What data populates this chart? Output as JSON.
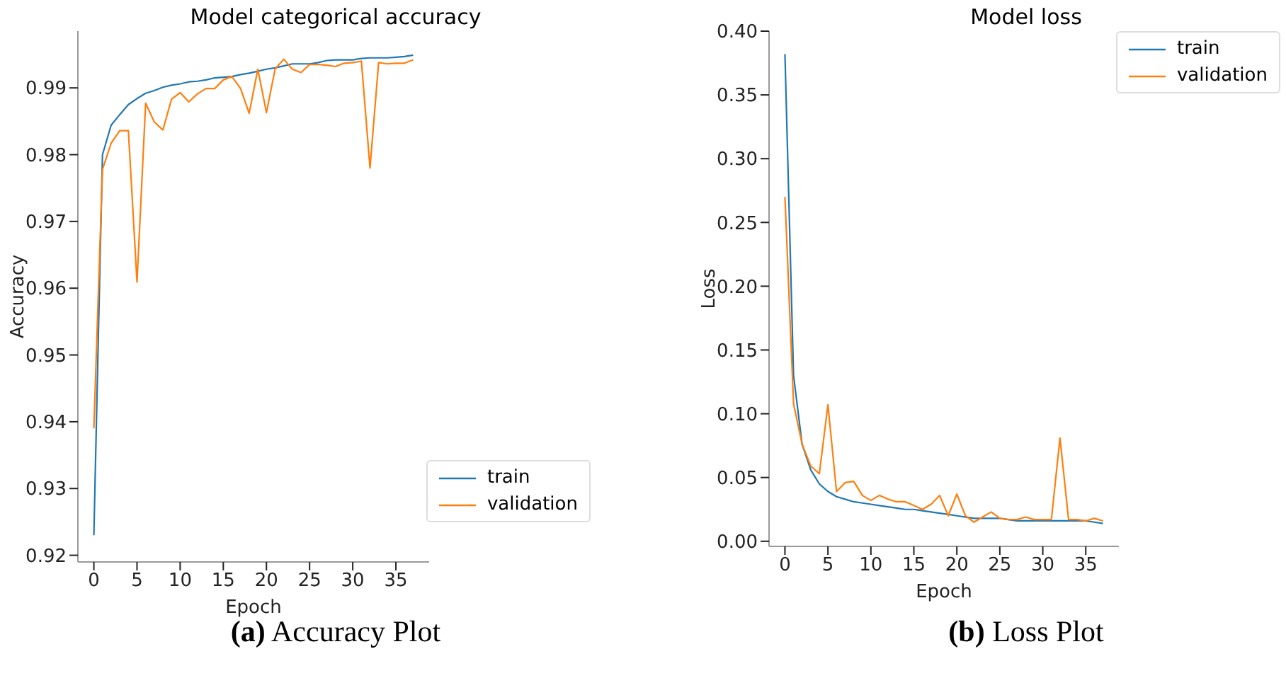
{
  "chart_data": [
    {
      "type": "line",
      "title": "Model categorical accuracy",
      "xlabel": "Epoch",
      "ylabel": "Accuracy",
      "annotations": [
        "(a) Accuracy Plot"
      ],
      "x": [
        0,
        1,
        2,
        3,
        4,
        5,
        6,
        7,
        8,
        9,
        10,
        11,
        12,
        13,
        14,
        15,
        16,
        17,
        18,
        19,
        20,
        21,
        22,
        23,
        24,
        25,
        26,
        27,
        28,
        29,
        30,
        31,
        32,
        33,
        34,
        35,
        36,
        37
      ],
      "series": [
        {
          "name": "train",
          "color": "#1f77b4",
          "values": [
            0.923,
            0.98,
            0.9844,
            0.986,
            0.9875,
            0.9884,
            0.9892,
            0.9896,
            0.9901,
            0.9904,
            0.9906,
            0.9909,
            0.991,
            0.9912,
            0.9915,
            0.9916,
            0.9917,
            0.992,
            0.9922,
            0.9925,
            0.9928,
            0.993,
            0.9933,
            0.9936,
            0.9936,
            0.9936,
            0.9938,
            0.9941,
            0.9942,
            0.9942,
            0.9942,
            0.9944,
            0.9945,
            0.9945,
            0.9945,
            0.9946,
            0.9947,
            0.9949
          ]
        },
        {
          "name": "validation",
          "color": "#ff7f0e",
          "values": [
            0.939,
            0.9778,
            0.9817,
            0.9836,
            0.9836,
            0.9609,
            0.9877,
            0.9849,
            0.9837,
            0.9883,
            0.9893,
            0.9879,
            0.9891,
            0.9899,
            0.9899,
            0.9912,
            0.9917,
            0.9899,
            0.9862,
            0.9928,
            0.9863,
            0.9928,
            0.9943,
            0.9928,
            0.9923,
            0.9935,
            0.9935,
            0.9934,
            0.9932,
            0.9937,
            0.9938,
            0.994,
            0.978,
            0.9938,
            0.9936,
            0.9937,
            0.9937,
            0.9942
          ]
        }
      ],
      "xlim": [
        -1.85,
        38.85
      ],
      "xticks": [
        0,
        5,
        10,
        15,
        20,
        25,
        30,
        35
      ],
      "ylim": [
        0.919,
        0.9985
      ],
      "yticks": [
        0.92,
        0.93,
        0.94,
        0.95,
        0.96,
        0.97,
        0.98,
        0.99
      ],
      "legend": "bottom right",
      "grid": false,
      "line_style": "solid"
    },
    {
      "type": "line",
      "title": "Model loss",
      "xlabel": "Epoch",
      "ylabel": "Loss",
      "annotations": [
        "(b) Loss Plot"
      ],
      "x": [
        0,
        1,
        2,
        3,
        4,
        5,
        6,
        7,
        8,
        9,
        10,
        11,
        12,
        13,
        14,
        15,
        16,
        17,
        18,
        19,
        20,
        21,
        22,
        23,
        24,
        25,
        26,
        27,
        28,
        29,
        30,
        31,
        32,
        33,
        34,
        35,
        36,
        37
      ],
      "series": [
        {
          "name": "train",
          "color": "#1f77b4",
          "values": [
            0.382,
            0.13,
            0.076,
            0.056,
            0.045,
            0.039,
            0.035,
            0.033,
            0.031,
            0.03,
            0.029,
            0.028,
            0.027,
            0.026,
            0.025,
            0.025,
            0.024,
            0.023,
            0.022,
            0.021,
            0.02,
            0.019,
            0.018,
            0.018,
            0.018,
            0.018,
            0.017,
            0.016,
            0.016,
            0.016,
            0.016,
            0.016,
            0.016,
            0.016,
            0.016,
            0.016,
            0.015,
            0.014
          ]
        },
        {
          "name": "validation",
          "color": "#ff7f0e",
          "values": [
            0.27,
            0.108,
            0.076,
            0.059,
            0.053,
            0.107,
            0.039,
            0.046,
            0.047,
            0.036,
            0.032,
            0.036,
            0.033,
            0.031,
            0.031,
            0.028,
            0.025,
            0.029,
            0.036,
            0.02,
            0.037,
            0.02,
            0.015,
            0.019,
            0.023,
            0.018,
            0.017,
            0.017,
            0.019,
            0.017,
            0.017,
            0.017,
            0.081,
            0.017,
            0.017,
            0.016,
            0.018,
            0.016
          ]
        }
      ],
      "xlim": [
        -1.85,
        38.85
      ],
      "xticks": [
        0,
        5,
        10,
        15,
        20,
        25,
        30,
        35
      ],
      "ylim": [
        -0.004,
        0.4
      ],
      "yticks": [
        {
          "value": 0,
          "label": "0.00"
        },
        {
          "value": 0.05,
          "label": "0.05"
        },
        {
          "value": 0.1,
          "label": "0.10"
        },
        {
          "value": 0.15,
          "label": "0.15"
        },
        {
          "value": 0.2,
          "label": "0.20"
        },
        {
          "value": 0.25,
          "label": "0.25"
        },
        {
          "value": 0.3,
          "label": "0.30"
        },
        {
          "value": 0.35,
          "label": "0.35"
        },
        {
          "value": 0.4,
          "label": "0.40"
        }
      ],
      "legend": "top right",
      "grid": false,
      "line_style": "solid"
    }
  ]
}
